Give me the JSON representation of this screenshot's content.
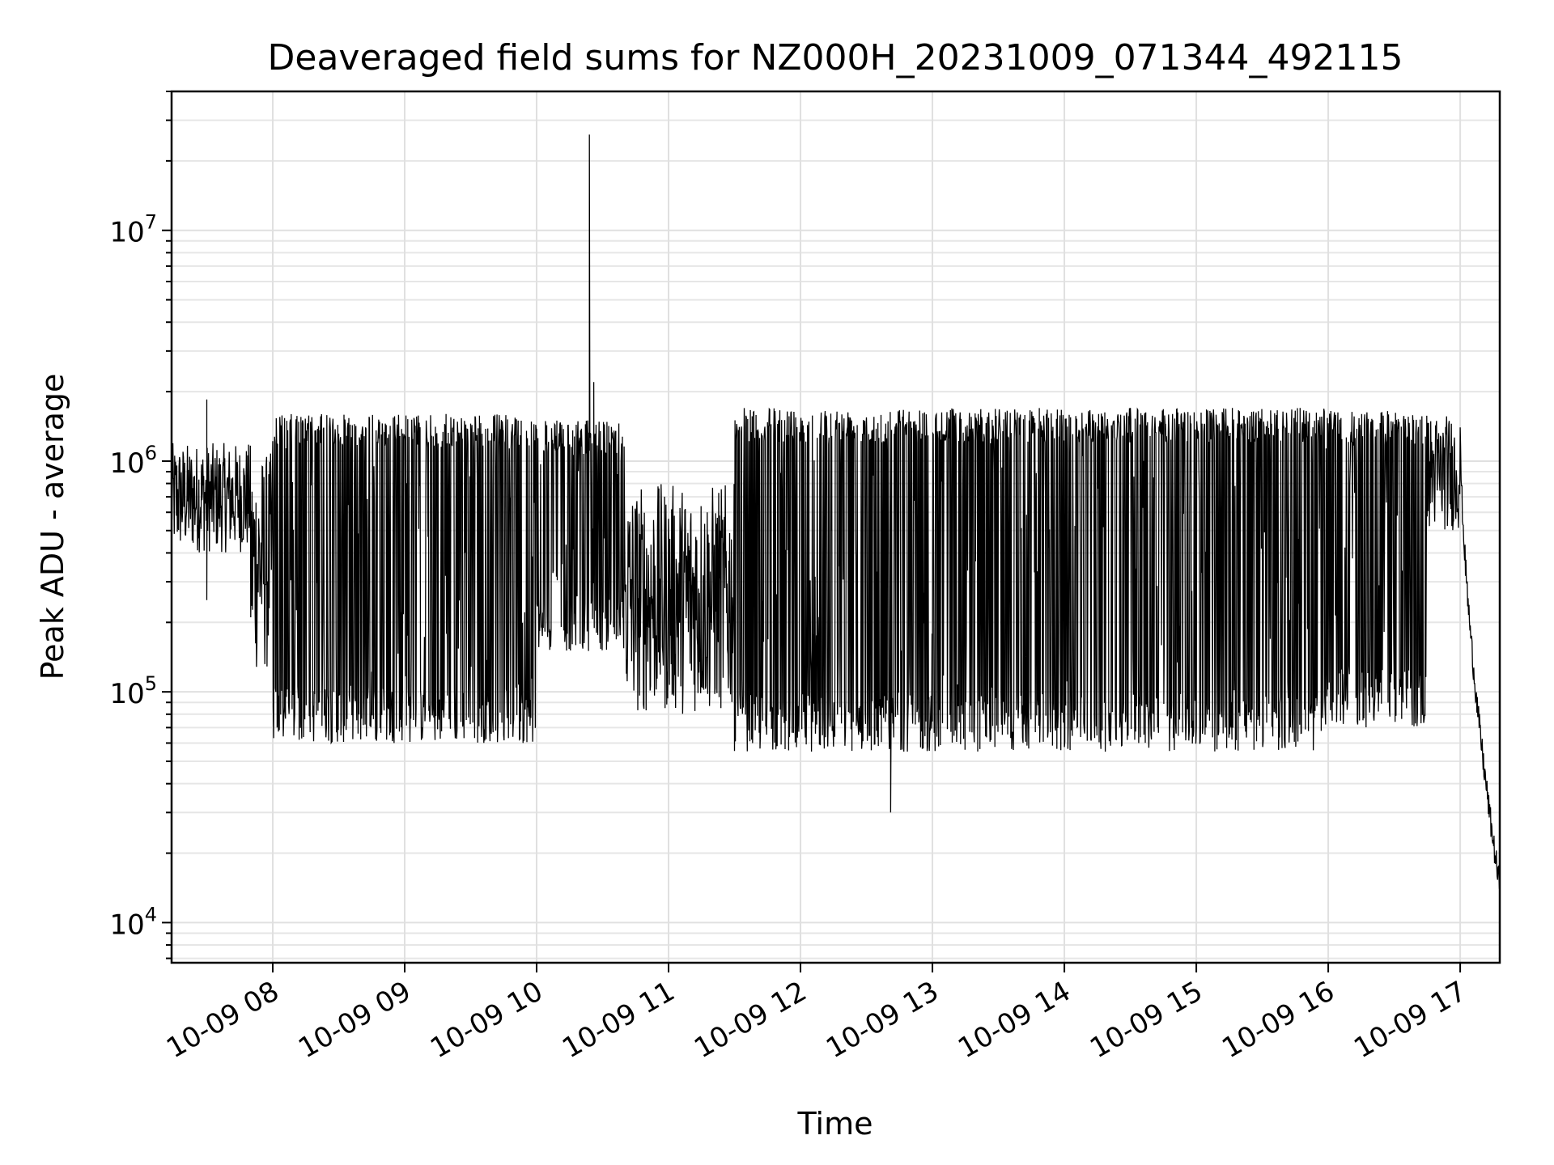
{
  "chart_data": {
    "type": "line",
    "title": "Deaveraged field sums for NZ000H_20231009_071344_492115",
    "xlabel": "Time",
    "ylabel": "Peak ADU - average",
    "y_scale": "log",
    "ylim": [
      6700,
      40000000
    ],
    "xlim": [
      "2023-10-09 07:14",
      "2023-10-09 17:18"
    ],
    "grid": "on",
    "x_tick_labels": [
      "10-09 08",
      "10-09 09",
      "10-09 10",
      "10-09 11",
      "10-09 12",
      "10-09 13",
      "10-09 14",
      "10-09 15",
      "10-09 16",
      "10-09 17"
    ],
    "x_ticks": [
      "2023-10-09 08:00",
      "2023-10-09 09:00",
      "2023-10-09 10:00",
      "2023-10-09 11:00",
      "2023-10-09 12:00",
      "2023-10-09 13:00",
      "2023-10-09 14:00",
      "2023-10-09 15:00",
      "2023-10-09 16:00",
      "2023-10-09 17:00"
    ],
    "y_ticks": [
      {
        "value": 10000,
        "base": "10",
        "exp": "4"
      },
      {
        "value": 100000,
        "base": "10",
        "exp": "5"
      },
      {
        "value": 1000000,
        "base": "10",
        "exp": "6"
      },
      {
        "value": 10000000,
        "base": "10",
        "exp": "7"
      }
    ],
    "series": [
      {
        "color": "#000000",
        "segments": [
          {
            "start": "2023-10-09 07:14",
            "end": "2023-10-09 07:50",
            "low": 400000,
            "high": 1200000,
            "pattern": "dense"
          },
          {
            "start": "2023-10-09 07:50",
            "end": "2023-10-09 08:00",
            "low": 120000,
            "high": 1100000,
            "pattern": "dense"
          },
          {
            "start": "2023-10-09 08:00",
            "end": "2023-10-09 10:00",
            "low": 60000,
            "high": 1600000,
            "pattern": "switching"
          },
          {
            "start": "2023-10-09 10:00",
            "end": "2023-10-09 10:40",
            "low": 150000,
            "high": 1500000,
            "pattern": "switching"
          },
          {
            "start": "2023-10-09 10:40",
            "end": "2023-10-09 11:30",
            "low": 80000,
            "high": 800000,
            "pattern": "dense"
          },
          {
            "start": "2023-10-09 11:30",
            "end": "2023-10-09 16:00",
            "low": 55000,
            "high": 1700000,
            "pattern": "switching"
          },
          {
            "start": "2023-10-09 16:00",
            "end": "2023-10-09 16:45",
            "low": 70000,
            "high": 1650000,
            "pattern": "switching"
          },
          {
            "start": "2023-10-09 16:45",
            "end": "2023-10-09 17:00",
            "low": 500000,
            "high": 1600000,
            "pattern": "dense"
          },
          {
            "start": "2023-10-09 17:00",
            "end": "2023-10-09 17:18",
            "low": 14000,
            "high": 1400000,
            "pattern": "decline"
          }
        ],
        "spikes": [
          {
            "time": "2023-10-09 07:30",
            "value": 1850000
          },
          {
            "time": "2023-10-09 07:30",
            "value": 250000
          },
          {
            "time": "2023-10-09 10:24",
            "value": 26000000
          },
          {
            "time": "2023-10-09 10:26",
            "value": 2200000
          },
          {
            "time": "2023-10-09 12:41",
            "value": 30000
          }
        ]
      }
    ]
  }
}
